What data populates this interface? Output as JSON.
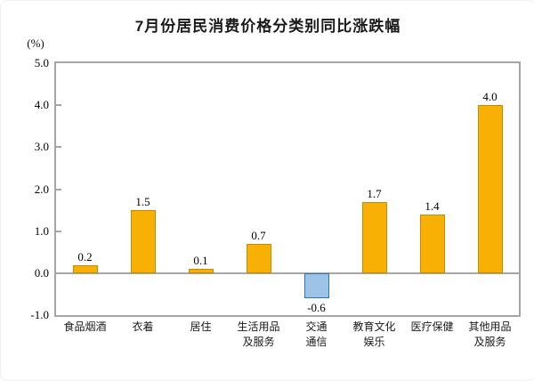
{
  "chart_data": {
    "type": "bar",
    "title": "7月份居民消费价格分类别同比涨跌幅",
    "ylabel": "(%)",
    "xlabel": "",
    "categories": [
      "食品烟酒",
      "衣着",
      "居住",
      "生活用品\n及服务",
      "交通\n通信",
      "教育文化\n娱乐",
      "医疗保健",
      "其他用品\n及服务"
    ],
    "values": [
      0.2,
      1.5,
      0.1,
      0.7,
      -0.6,
      1.7,
      1.4,
      4.0
    ],
    "value_labels": [
      "0.2",
      "1.5",
      "0.1",
      "0.7",
      "-0.6",
      "1.7",
      "1.4",
      "4.0"
    ],
    "ylim": [
      -1.0,
      5.0
    ],
    "yticks": [
      5.0,
      4.0,
      3.0,
      2.0,
      1.0,
      0.0,
      -1.0
    ],
    "ytick_labels": [
      "5.0",
      "4.0",
      "3.0",
      "2.0",
      "1.0",
      "0.0",
      "-1.0"
    ],
    "grid": false,
    "legend": null,
    "colors": {
      "bar_positive": "#F8B004",
      "bar_positive_border": "#C88A00",
      "bar_negative": "#9DC3E6",
      "bar_negative_border": "#2E75B6",
      "axis": "#A6A6A6",
      "text": "#000000"
    }
  }
}
